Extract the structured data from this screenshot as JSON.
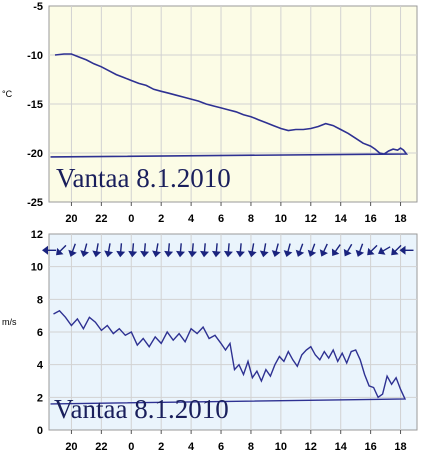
{
  "chart_data": [
    {
      "type": "line",
      "ylabel": "°C",
      "annotation": "Vantaa 8.1.2010",
      "xlim": [
        18.5,
        19.1
      ],
      "ylim": [
        -25,
        -5
      ],
      "yticks": [
        "-5",
        "-10",
        "-15",
        "-20",
        "-25"
      ],
      "xticks": [
        "20",
        "22",
        "0",
        "2",
        "4",
        "6",
        "8",
        "10",
        "12",
        "14",
        "16",
        "18"
      ],
      "grid": true,
      "background": "#fcfce6",
      "line_color": "#2e3192",
      "series": [
        {
          "x": [
            18.9,
            19.5,
            20.0,
            20.5,
            21.0,
            21.5,
            22.0,
            22.5,
            23.0,
            23.5,
            0.0,
            0.5,
            1.0,
            1.5,
            2.0,
            2.5,
            3.0,
            3.5,
            4.0,
            4.5,
            5.0,
            5.5,
            6.0,
            6.5,
            7.0,
            7.5,
            8.0,
            8.5,
            9.0,
            9.5,
            10.0,
            10.5,
            11.0,
            11.5,
            12.0,
            12.5,
            13.0,
            13.5,
            14.0,
            14.5,
            15.0,
            15.5,
            16.0,
            16.3,
            16.6,
            16.9,
            17.2,
            17.5,
            17.8,
            18.0,
            18.2,
            18.4,
            18.6
          ],
          "values": [
            -10.0,
            -9.9,
            -9.9,
            -10.2,
            -10.5,
            -10.9,
            -11.2,
            -11.6,
            -12.0,
            -12.3,
            -12.6,
            -12.9,
            -13.1,
            -13.5,
            -13.7,
            -13.9,
            -14.1,
            -14.3,
            -14.5,
            -14.7,
            -15.0,
            -15.2,
            -15.4,
            -15.6,
            -15.8,
            -16.1,
            -16.3,
            -16.6,
            -16.9,
            -17.2,
            -17.5,
            -17.7,
            -17.6,
            -17.6,
            -17.5,
            -17.3,
            -17.0,
            -17.2,
            -17.6,
            -18.0,
            -18.5,
            -19.0,
            -19.3,
            -19.6,
            -20.0,
            -20.1,
            -19.8,
            -19.6,
            -19.7,
            -19.5,
            -19.7,
            -20.1,
            -20.4
          ]
        }
      ]
    },
    {
      "type": "line",
      "ylabel": "m/s",
      "annotation": "Vantaa 8.1.2010",
      "xlim": [
        18.5,
        19.1
      ],
      "ylim": [
        0,
        12
      ],
      "yticks": [
        "12",
        "10",
        "8",
        "6",
        "4",
        "2",
        "0"
      ],
      "xticks": [
        "20",
        "22",
        "0",
        "2",
        "4",
        "6",
        "8",
        "10",
        "12",
        "14",
        "16",
        "18"
      ],
      "grid": true,
      "background": "#eaf4fc",
      "line_color": "#2e3192",
      "arrow_color": "#1a237e",
      "wind_arrows": {
        "level": 11,
        "x": [
          18.5,
          19.3,
          20.1,
          20.9,
          21.7,
          22.5,
          23.3,
          0.1,
          0.9,
          1.7,
          2.5,
          3.3,
          4.1,
          4.9,
          5.7,
          6.5,
          7.3,
          8.1,
          8.9,
          9.7,
          10.5,
          11.3,
          12.1,
          12.9,
          13.7,
          14.5,
          15.3,
          16.1,
          16.9,
          17.7,
          18.4
        ],
        "direction_deg": [
          270,
          315,
          340,
          345,
          350,
          350,
          355,
          355,
          355,
          350,
          355,
          355,
          355,
          355,
          355,
          355,
          355,
          350,
          350,
          345,
          345,
          340,
          340,
          335,
          325,
          330,
          340,
          315,
          300,
          315,
          270
        ]
      },
      "series": [
        {
          "x": [
            18.8,
            19.2,
            19.6,
            20.0,
            20.4,
            20.8,
            21.2,
            21.6,
            22.0,
            22.4,
            22.8,
            23.2,
            23.6,
            0.0,
            0.4,
            0.8,
            1.2,
            1.6,
            2.0,
            2.4,
            2.8,
            3.2,
            3.6,
            4.0,
            4.4,
            4.8,
            5.2,
            5.6,
            6.0,
            6.3,
            6.6,
            6.9,
            7.2,
            7.5,
            7.8,
            8.1,
            8.4,
            8.7,
            9.0,
            9.3,
            9.6,
            9.9,
            10.2,
            10.5,
            10.8,
            11.1,
            11.4,
            11.7,
            12.0,
            12.3,
            12.6,
            12.9,
            13.2,
            13.5,
            13.8,
            14.1,
            14.4,
            14.7,
            15.0,
            15.3,
            15.6,
            15.9,
            16.2,
            16.5,
            16.8,
            17.1,
            17.4,
            17.7,
            18.0,
            18.3,
            18.6
          ],
          "values": [
            7.1,
            7.3,
            6.9,
            6.4,
            6.8,
            6.2,
            6.9,
            6.6,
            6.1,
            6.4,
            5.9,
            6.2,
            5.8,
            6.0,
            5.2,
            5.6,
            5.1,
            5.7,
            5.3,
            6.0,
            5.5,
            5.9,
            5.4,
            6.2,
            5.9,
            6.3,
            5.6,
            5.8,
            5.3,
            4.9,
            5.3,
            3.7,
            4.0,
            3.4,
            4.2,
            3.2,
            3.6,
            3.0,
            3.7,
            3.3,
            4.0,
            4.5,
            4.2,
            4.8,
            4.3,
            3.9,
            4.6,
            4.9,
            5.1,
            4.6,
            4.3,
            4.8,
            4.4,
            4.9,
            4.2,
            4.7,
            4.1,
            4.8,
            4.9,
            4.3,
            3.4,
            2.7,
            2.6,
            2.0,
            2.2,
            3.3,
            2.8,
            3.2,
            2.5,
            1.9,
            1.6
          ]
        }
      ]
    }
  ]
}
